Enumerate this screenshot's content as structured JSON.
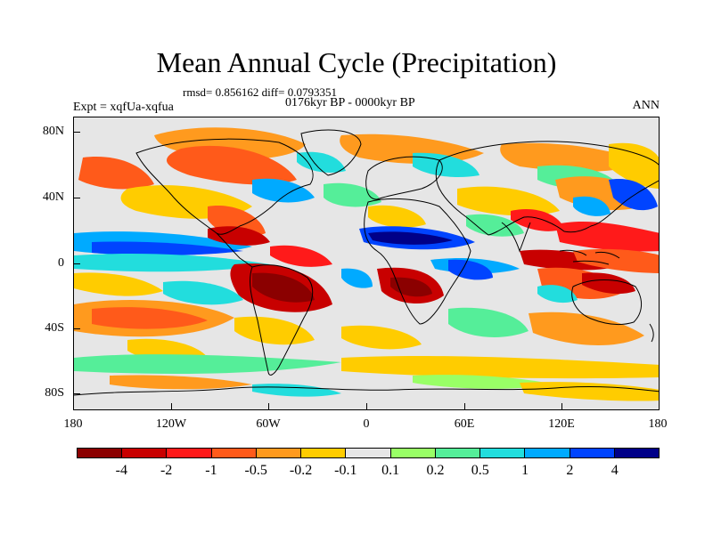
{
  "title": "Mean Annual Cycle (Precipitation)",
  "stats": "rmsd= 0.856162 diff= 0.0793351",
  "period": "0176kyr BP - 0000kyr BP",
  "expt": "Expt = xqfUa-xqfua",
  "season": "ANN",
  "yticks": [
    "80N",
    "40N",
    "0",
    "40S",
    "80S"
  ],
  "xticks": [
    "180",
    "120W",
    "60W",
    "0",
    "60E",
    "120E",
    "180"
  ],
  "colorbar": {
    "colors": [
      "#8b0000",
      "#c80000",
      "#ff1a1a",
      "#ff5a1a",
      "#ff9a1e",
      "#ffcc00",
      "#e6e6e6",
      "#99ff66",
      "#55ee99",
      "#22dddd",
      "#00aaff",
      "#0044ff",
      "#000088"
    ],
    "labels": [
      "-4",
      "-2",
      "-1",
      "-0.5",
      "-0.2",
      "-0.1",
      "0.1",
      "0.2",
      "0.5",
      "1",
      "2",
      "4"
    ]
  }
}
